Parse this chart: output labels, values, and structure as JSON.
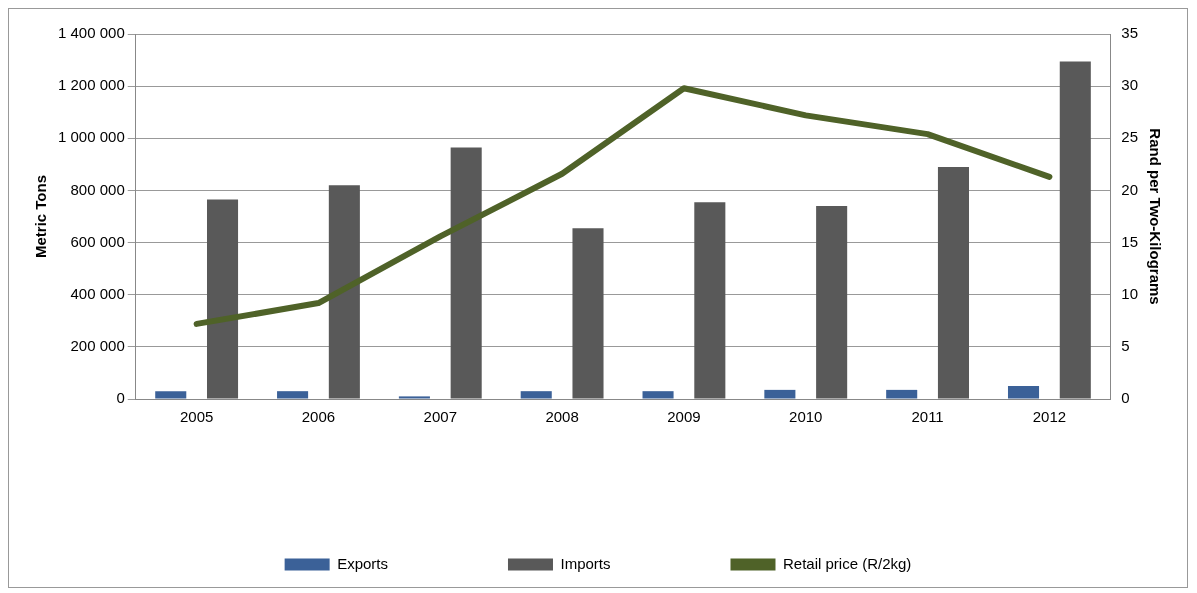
{
  "chart_data": {
    "type": "bar",
    "categories": [
      "2005",
      "2006",
      "2007",
      "2008",
      "2009",
      "2010",
      "2011",
      "2012"
    ],
    "series": [
      {
        "name": "Exports",
        "color": "#3b6198",
        "values": [
          30000,
          30000,
          10000,
          30000,
          30000,
          35000,
          35000,
          50000
        ]
      },
      {
        "name": "Imports",
        "color": "#595959",
        "values": [
          765000,
          820000,
          965000,
          655000,
          755000,
          740000,
          890000,
          1295000
        ]
      },
      {
        "name": "Retail price (R/2kg)",
        "type": "line",
        "axis": "y2",
        "color": "#4f6228",
        "values": [
          7.2,
          9.2,
          15.6,
          21.6,
          29.8,
          27.2,
          25.4,
          21.3
        ]
      }
    ],
    "ylabel": "Metric Tons",
    "y2label": "Rand per Two-Kilograms",
    "ylim": [
      0,
      1400000
    ],
    "yticks": [
      {
        "value": 0,
        "label": "0"
      },
      {
        "value": 200000,
        "label": "200 000"
      },
      {
        "value": 400000,
        "label": "400 000"
      },
      {
        "value": 600000,
        "label": "600 000"
      },
      {
        "value": 800000,
        "label": "800 000"
      },
      {
        "value": 1000000,
        "label": "1 000 000"
      },
      {
        "value": 1200000,
        "label": "1 200 000"
      },
      {
        "value": 1400000,
        "label": "1 400 000"
      }
    ],
    "y2lim": [
      0,
      35
    ],
    "y2ticks": [
      0,
      5,
      10,
      15,
      20,
      25,
      30,
      35
    ],
    "grid": "y",
    "legend": "bottom",
    "marker": "none",
    "line_style": "solid"
  }
}
